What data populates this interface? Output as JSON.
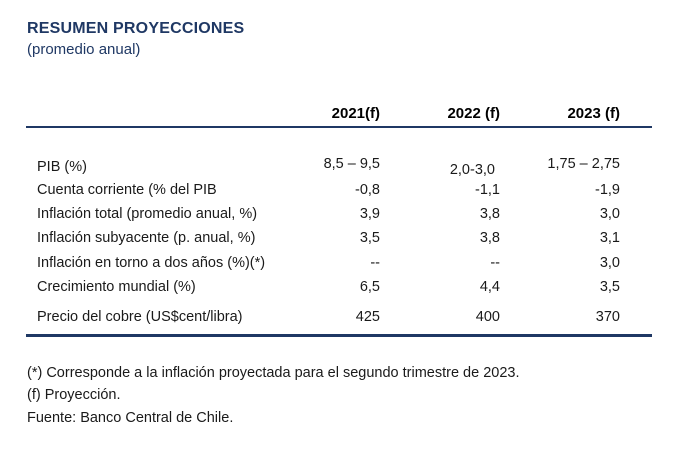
{
  "title": "RESUMEN PROYECCIONES",
  "subtitle": "(promedio anual)",
  "columns": [
    "2021(f)",
    "2022 (f)",
    "2023 (f)"
  ],
  "rows": [
    {
      "label": "PIB (%)",
      "values": [
        "8,5 – 9,5",
        "2,0-3,0",
        "1,75 – 2,75"
      ]
    },
    {
      "label": "Cuenta corriente (% del PIB",
      "values": [
        "-0,8",
        "-1,1",
        "-1,9"
      ]
    },
    {
      "label": "Inflación total (promedio anual, %)",
      "values": [
        "3,9",
        "3,8",
        "3,0"
      ]
    },
    {
      "label": "Inflación subyacente (p. anual, %)",
      "values": [
        "3,5",
        "3,8",
        "3,1"
      ]
    },
    {
      "label": "Inflación en torno a dos años (%)(*)",
      "values": [
        "--",
        "--",
        "3,0"
      ]
    },
    {
      "label": "Crecimiento mundial (%)",
      "values": [
        "6,5",
        "4,4",
        "3,5"
      ]
    },
    {
      "label": "Precio del cobre (US$cent/libra)",
      "values": [
        "425",
        "400",
        "370"
      ]
    }
  ],
  "notes": [
    "(*) Corresponde a la inflación proyectada para el segundo trimestre de 2023.",
    "(f) Proyección.",
    "Fuente: Banco Central de Chile."
  ],
  "colors": {
    "heading": "#1f3864",
    "rule": "#1f3864",
    "text": "#1a1a1a"
  }
}
